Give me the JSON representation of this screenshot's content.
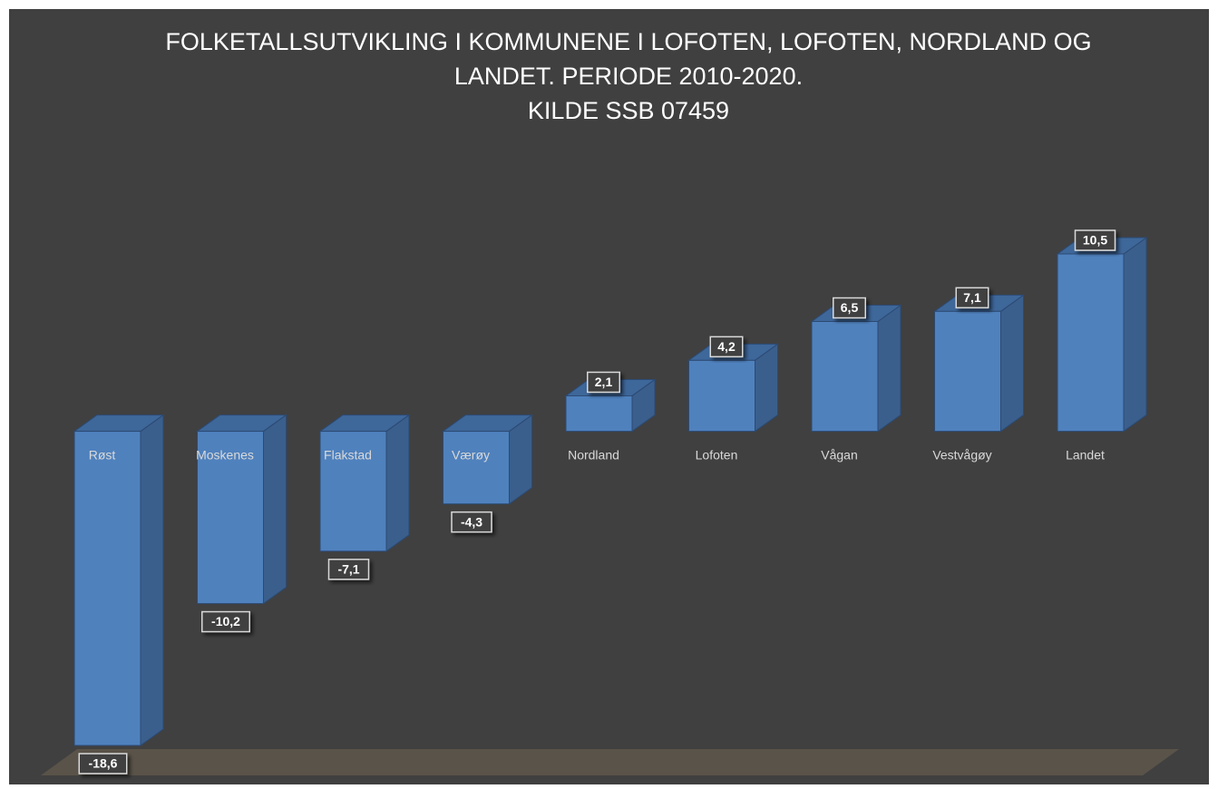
{
  "chart_data": {
    "type": "bar3d",
    "title": [
      "FOLKETALLSUTVIKLING I KOMMUNENE I LOFOTEN, LOFOTEN, NORDLAND OG",
      "LANDET.   PERIODE 2010-2020.",
      "KILDE SSB 07459"
    ],
    "categories": [
      "Røst",
      "Moskenes",
      "Flakstad",
      "Værøy",
      "Nordland",
      "Lofoten",
      "Vågan",
      "Vestvågøy",
      "Landet"
    ],
    "values": [
      -18.6,
      -10.2,
      -7.1,
      -4.3,
      2.1,
      4.2,
      6.5,
      7.1,
      10.5
    ],
    "value_labels": [
      "-18,6",
      "-10,2",
      "-7,1",
      "-4,3",
      "2,1",
      "4,2",
      "6,5",
      "7,1",
      "10,5"
    ],
    "color": "#4f81bd"
  }
}
